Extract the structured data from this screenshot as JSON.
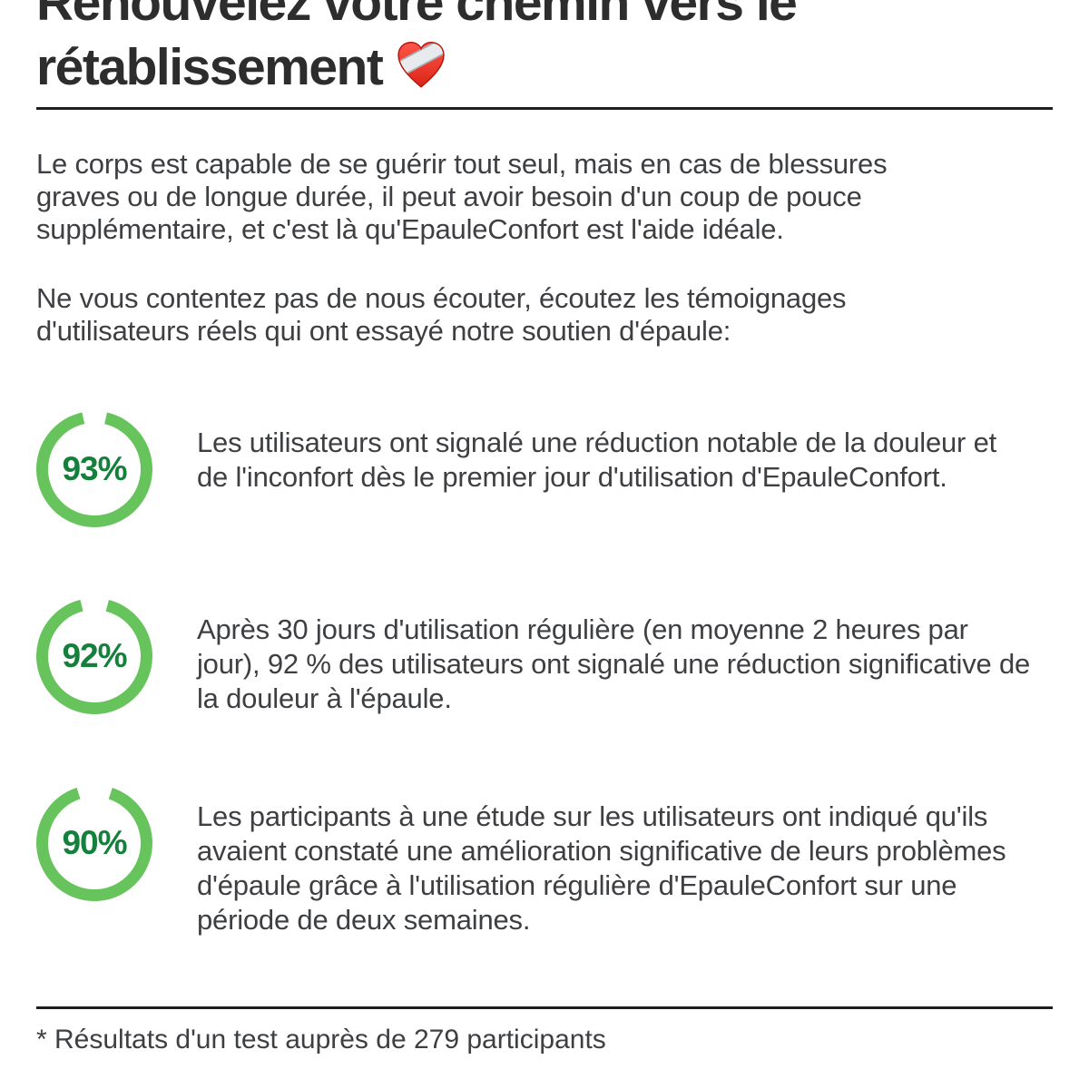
{
  "heading": {
    "line1": "Renouvelez votre chemin vers le",
    "line2": "rétablissement",
    "emoji": "❤️‍🩹",
    "emoji_name": "mending-heart"
  },
  "intro": {
    "paragraph1": "Le corps est capable de se guérir tout seul, mais en cas de blessures graves ou de longue durée, il peut avoir besoin d'un coup de pouce supplémentaire, et c'est là qu'EpauleConfort est l'aide idéale.",
    "paragraph2": "Ne vous contentez pas de nous écouter, écoutez les témoignages d'utilisateurs réels qui ont essayé notre soutien d'épaule:"
  },
  "stats": [
    {
      "percent": 93,
      "label": "93%",
      "text": "Les utilisateurs ont signalé une réduction notable de la douleur et de l'inconfort dès le premier jour d'utilisation d'EpauleConfort."
    },
    {
      "percent": 92,
      "label": "92%",
      "text": "Après 30 jours d'utilisation régulière (en moyenne 2 heures par jour), 92 % des utilisateurs ont signalé une réduction significative de la douleur à l'épaule."
    },
    {
      "percent": 90,
      "label": "90%",
      "text": "Les participants à une étude sur les utilisateurs ont indiqué qu'ils avaient constaté une amélioration significative de leurs problèmes d'épaule grâce à l'utilisation régulière d'EpauleConfort sur une période de deux semaines."
    }
  ],
  "footnote": "* Résultats d'un test auprès de 279 participants",
  "colors": {
    "ring_green": "#67c45c",
    "percent_green": "#14803c",
    "heading_text": "#2d2d2d",
    "body_text": "#3e3f42",
    "divider": "#1f1f1f",
    "heart_red": "#e8342a",
    "bandage_gray": "#e8ebed"
  }
}
